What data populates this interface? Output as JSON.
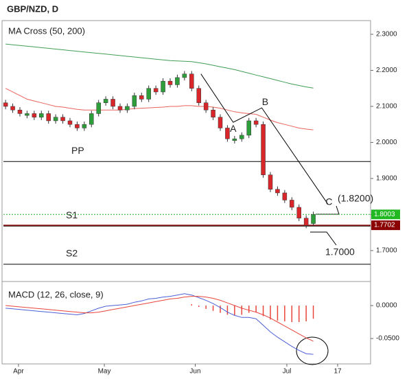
{
  "chart_data": {
    "type": "candlestick",
    "title": "GBP/NZD, D",
    "panel_title": "MA Cross (50, 200)",
    "xlim": [
      -0.3,
      51
    ],
    "xticks": [
      {
        "value": 1.8,
        "label": "Apr"
      },
      {
        "value": 13.8,
        "label": "May"
      },
      {
        "value": 26.5,
        "label": "Jun"
      },
      {
        "value": 39.3,
        "label": "Jul"
      },
      {
        "value": 46.4,
        "label": "17"
      }
    ],
    "ylim": [
      1.618,
      2.338
    ],
    "yticks": [
      {
        "value": 1.7,
        "label": "1.7000"
      },
      {
        "value": 1.8,
        "label": "1.8000"
      },
      {
        "value": 1.9,
        "label": "1.9000"
      },
      {
        "value": 2.0,
        "label": "2.0000"
      },
      {
        "value": 2.1,
        "label": "2.1000"
      },
      {
        "value": 2.2,
        "label": "2.2000"
      },
      {
        "value": 2.3,
        "label": "2.3000"
      }
    ],
    "up_color": "#2e9e3a",
    "down_color": "#d8262b",
    "open": [
      2.11,
      2.1,
      2.09,
      2.075,
      2.08,
      2.07,
      2.08,
      2.06,
      2.07,
      2.06,
      2.05,
      2.04,
      2.05,
      2.08,
      2.11,
      2.12,
      2.1,
      2.09,
      2.1,
      2.13,
      2.12,
      2.15,
      2.14,
      2.17,
      2.16,
      2.18,
      2.19,
      2.15,
      2.11,
      2.09,
      2.07,
      2.04,
      2.005,
      2.01,
      2.02,
      2.06,
      2.05,
      1.91,
      1.87,
      1.86,
      1.84,
      1.82,
      1.79,
      1.775
    ],
    "high": [
      2.118,
      2.108,
      2.098,
      2.088,
      2.088,
      2.088,
      2.088,
      2.078,
      2.078,
      2.068,
      2.058,
      2.058,
      2.088,
      2.118,
      2.128,
      2.128,
      2.108,
      2.108,
      2.138,
      2.138,
      2.158,
      2.158,
      2.178,
      2.178,
      2.188,
      2.198,
      2.198,
      2.158,
      2.118,
      2.098,
      2.078,
      2.048,
      2.018,
      2.028,
      2.068,
      2.068,
      2.058,
      1.918,
      1.878,
      1.868,
      1.848,
      1.828,
      1.798,
      1.808
    ],
    "low": [
      2.092,
      2.082,
      2.072,
      2.067,
      2.062,
      2.062,
      2.052,
      2.052,
      2.052,
      2.042,
      2.032,
      2.032,
      2.042,
      2.072,
      2.102,
      2.092,
      2.082,
      2.082,
      2.092,
      2.112,
      2.112,
      2.132,
      2.132,
      2.152,
      2.152,
      2.172,
      2.142,
      2.102,
      2.082,
      2.062,
      2.032,
      2.002,
      1.997,
      2.002,
      2.012,
      2.042,
      1.902,
      1.862,
      1.852,
      1.832,
      1.812,
      1.782,
      1.762,
      1.767
    ],
    "close": [
      2.1,
      2.09,
      2.08,
      2.08,
      2.07,
      2.08,
      2.06,
      2.07,
      2.06,
      2.05,
      2.04,
      2.05,
      2.08,
      2.11,
      2.12,
      2.1,
      2.09,
      2.1,
      2.13,
      2.12,
      2.15,
      2.14,
      2.17,
      2.16,
      2.18,
      2.19,
      2.15,
      2.11,
      2.09,
      2.07,
      2.04,
      2.01,
      2.01,
      2.02,
      2.06,
      2.05,
      1.91,
      1.87,
      1.86,
      1.84,
      1.82,
      1.79,
      1.77,
      1.8
    ],
    "ma": [
      {
        "color": "#e8625a",
        "values": [
          2.15,
          2.14,
          2.13,
          2.12,
          2.115,
          2.11,
          2.105,
          2.1,
          2.098,
          2.095,
          2.092,
          2.09,
          2.09,
          2.09,
          2.09,
          2.09,
          2.09,
          2.092,
          2.094,
          2.095,
          2.096,
          2.097,
          2.098,
          2.1,
          2.1,
          2.102,
          2.102,
          2.1,
          2.1,
          2.098,
          2.095,
          2.09,
          2.085,
          2.082,
          2.08,
          2.078,
          2.07,
          2.062,
          2.055,
          2.05,
          2.045,
          2.04,
          2.037,
          2.035
        ]
      },
      {
        "color": "#3f9e52",
        "values": [
          2.273,
          2.271,
          2.269,
          2.267,
          2.265,
          2.263,
          2.261,
          2.259,
          2.257,
          2.255,
          2.253,
          2.251,
          2.249,
          2.247,
          2.245,
          2.243,
          2.241,
          2.239,
          2.237,
          2.235,
          2.233,
          2.231,
          2.229,
          2.227,
          2.226,
          2.225,
          2.224,
          2.221,
          2.218,
          2.214,
          2.21,
          2.206,
          2.202,
          2.197,
          2.192,
          2.187,
          2.182,
          2.177,
          2.172,
          2.167,
          2.162,
          2.158,
          2.154,
          2.151
        ]
      }
    ],
    "levels": [
      {
        "name": "PP",
        "value": 1.947
      },
      {
        "name": "S1",
        "value": 1.768
      },
      {
        "name": "S2",
        "value": 1.662
      }
    ],
    "price_lines": [
      {
        "value": 1.8003,
        "color": "#22b822",
        "dotted": true
      },
      {
        "value": 1.7702,
        "color": "#8b0000",
        "dotted": false
      }
    ],
    "pattern": {
      "x": [
        27.3,
        31.8,
        35.8,
        45
      ],
      "y": [
        2.19,
        2.056,
        2.096,
        1.83
      ],
      "labels": [
        null,
        "A",
        "B",
        "C"
      ]
    },
    "annotations": [
      "(1.8200)",
      "1.7000"
    ],
    "macd": {
      "title": "MACD (12, 26, close, 9)",
      "ylim": [
        -0.0885,
        0.0365
      ],
      "yticks": [
        {
          "value": 0,
          "label": "0.0000"
        },
        {
          "value": -0.05,
          "label": "-0.0500"
        }
      ],
      "macd": {
        "color": "#4a5fd6",
        "values": [
          -0.004,
          -0.005,
          -0.006,
          -0.007,
          -0.008,
          -0.009,
          -0.01,
          -0.011,
          -0.012,
          -0.013,
          -0.014,
          -0.012,
          -0.008,
          -0.004,
          -0.001,
          0.0,
          0.001,
          0.002,
          0.005,
          0.007,
          0.01,
          0.011,
          0.013,
          0.014,
          0.016,
          0.018,
          0.016,
          0.012,
          0.008,
          0.003,
          -0.003,
          -0.01,
          -0.015,
          -0.018,
          -0.018,
          -0.02,
          -0.03,
          -0.04,
          -0.048,
          -0.055,
          -0.062,
          -0.068,
          -0.073,
          -0.074
        ]
      },
      "signal": {
        "color": "#e8443a",
        "values": [
          0.0,
          -0.001,
          -0.002,
          -0.003,
          -0.004,
          -0.005,
          -0.006,
          -0.007,
          -0.008,
          -0.009,
          -0.01,
          -0.011,
          -0.011,
          -0.01,
          -0.008,
          -0.006,
          -0.004,
          -0.002,
          0.0,
          0.002,
          0.004,
          0.006,
          0.008,
          0.01,
          0.011,
          0.013,
          0.014,
          0.014,
          0.013,
          0.011,
          0.008,
          0.004,
          0.0,
          -0.004,
          -0.007,
          -0.01,
          -0.014,
          -0.019,
          -0.025,
          -0.031,
          -0.037,
          -0.043,
          -0.049,
          -0.054
        ]
      },
      "histogram": {
        "color": "#e8443a",
        "values": [
          null,
          null,
          null,
          null,
          null,
          null,
          null,
          null,
          null,
          null,
          null,
          null,
          null,
          null,
          null,
          null,
          null,
          null,
          null,
          null,
          null,
          null,
          null,
          null,
          null,
          null,
          0.002,
          -0.002,
          -0.005,
          -0.008,
          -0.011,
          -0.014,
          -0.015,
          -0.014,
          -0.011,
          -0.01,
          -0.016,
          -0.021,
          -0.023,
          -0.024,
          -0.025,
          -0.025,
          -0.024,
          -0.02
        ]
      }
    }
  }
}
